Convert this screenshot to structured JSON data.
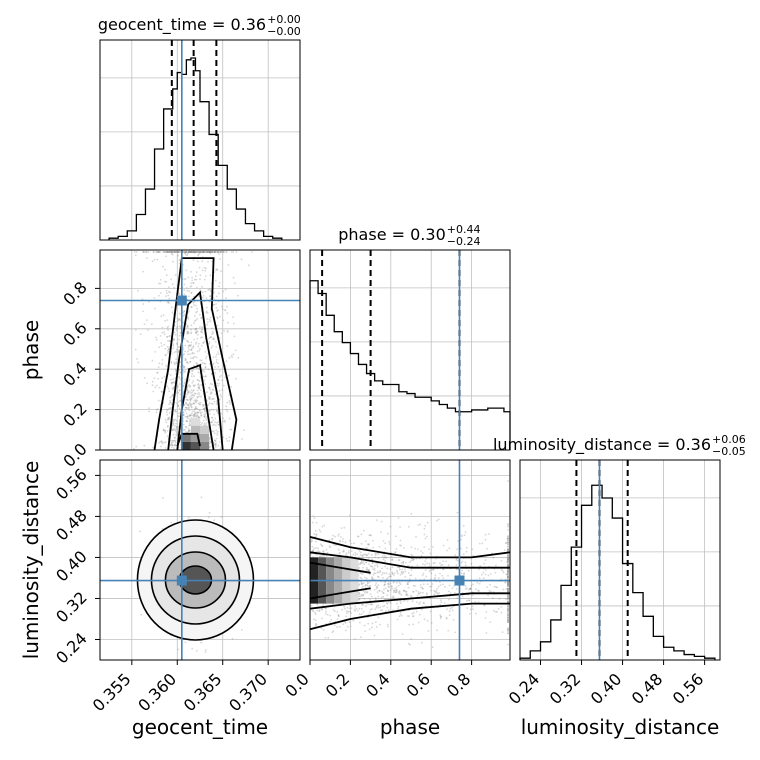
{
  "chart_data": {
    "type": "corner",
    "parameters": [
      "geocent_time",
      "phase",
      "luminosity_distance"
    ],
    "truth": {
      "geocent_time": 0.3605,
      "phase": 0.74,
      "luminosity_distance": 0.355
    },
    "colors": {
      "truth": "#4682b4",
      "hist": "#000000",
      "grid": "#c0c0c0",
      "points": "#8c8c8c"
    },
    "titles": [
      {
        "text": "geocent_time = 0.36",
        "plus": "+0.00",
        "minus": "−0.00"
      },
      {
        "text": "phase = 0.30",
        "plus": "+0.44",
        "minus": "−0.24"
      },
      {
        "text": "luminosity_distance = 0.36",
        "plus": "+0.06",
        "minus": "−0.05"
      }
    ],
    "ticks": {
      "geocent_time": [
        "0.355",
        "0.360",
        "0.365",
        "0.370"
      ],
      "phase": [
        "0.0",
        "0.2",
        "0.4",
        "0.6",
        "0.8"
      ],
      "luminosity_distance": [
        "0.24",
        "0.32",
        "0.40",
        "0.48",
        "0.56"
      ]
    },
    "ranges": {
      "geocent_time": [
        0.3515,
        0.3735
      ],
      "phase": [
        0.0,
        0.99
      ],
      "luminosity_distance": [
        0.2,
        0.59
      ]
    },
    "hist_geocent_time": {
      "bin_edges": [
        0.3525,
        0.3535,
        0.3545,
        0.3555,
        0.3565,
        0.3575,
        0.3585,
        0.3595,
        0.36,
        0.3605,
        0.361,
        0.3615,
        0.362,
        0.3625,
        0.3635,
        0.3645,
        0.3655,
        0.3665,
        0.3675,
        0.3685,
        0.3695,
        0.3705,
        0.3715
      ],
      "counts": [
        0.01,
        0.02,
        0.05,
        0.14,
        0.28,
        0.5,
        0.72,
        0.83,
        0.92,
        0.91,
        0.99,
        1.0,
        0.93,
        0.76,
        0.58,
        0.41,
        0.28,
        0.17,
        0.09,
        0.05,
        0.02,
        0.01
      ],
      "quantiles": [
        0.3594,
        0.3618,
        0.3643
      ]
    },
    "hist_phase": {
      "bin_edges": [
        0.0,
        0.04,
        0.08,
        0.12,
        0.16,
        0.2,
        0.24,
        0.28,
        0.32,
        0.36,
        0.4,
        0.44,
        0.48,
        0.52,
        0.56,
        0.6,
        0.64,
        0.68,
        0.72,
        0.76,
        0.8,
        0.84,
        0.88,
        0.92,
        0.96,
        0.99
      ],
      "counts": [
        0.93,
        0.86,
        0.74,
        0.65,
        0.59,
        0.53,
        0.47,
        0.42,
        0.38,
        0.36,
        0.36,
        0.32,
        0.31,
        0.29,
        0.29,
        0.27,
        0.25,
        0.23,
        0.21,
        0.21,
        0.22,
        0.22,
        0.23,
        0.23,
        0.21
      ],
      "quantiles": [
        0.06,
        0.3,
        0.74
      ]
    },
    "hist_luminosity_distance": {
      "bin_edges": [
        0.2,
        0.22,
        0.24,
        0.26,
        0.28,
        0.3,
        0.32,
        0.34,
        0.36,
        0.38,
        0.4,
        0.42,
        0.44,
        0.46,
        0.48,
        0.5,
        0.52,
        0.54,
        0.56,
        0.58
      ],
      "counts": [
        0.01,
        0.05,
        0.1,
        0.22,
        0.41,
        0.62,
        0.85,
        0.96,
        0.89,
        0.78,
        0.53,
        0.37,
        0.24,
        0.13,
        0.07,
        0.05,
        0.03,
        0.02,
        0.01
      ],
      "quantiles": [
        0.31,
        0.355,
        0.41
      ]
    },
    "pair_geocent_phase": {
      "x_center": 0.3615,
      "x_spread": 0.0018,
      "phase_decay": 0.55
    },
    "pair_geocent_distance": {
      "x_center": 0.362,
      "x_spread": 0.0018,
      "y_center": 0.356,
      "y_spread": 0.045
    },
    "pair_phase_distance": {
      "y_center": 0.356,
      "y_spread": 0.045,
      "phase_decay": 0.55
    }
  }
}
